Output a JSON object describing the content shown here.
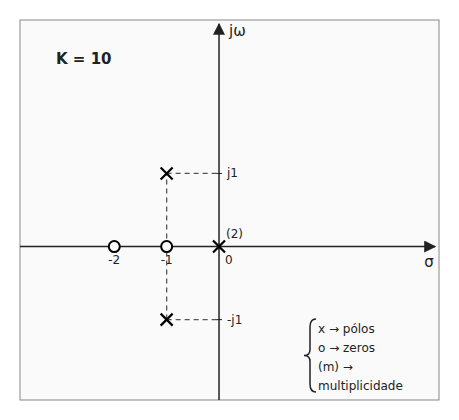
{
  "chart_data": {
    "type": "pole-zero",
    "title": "K = 10",
    "x_label": "σ",
    "y_label": "jω",
    "xlim": [
      -3.8,
      4.2
    ],
    "ylim": [
      -2.1,
      3.1
    ],
    "xticks": [
      -2,
      -1,
      0
    ],
    "yticks": [
      {
        "value": 1,
        "label": "j1"
      },
      {
        "value": -1,
        "label": "-j1"
      }
    ],
    "series": [
      {
        "name": "x  →  pólos",
        "marker": "x",
        "color": "#000000",
        "x": [
          0,
          -1,
          -1
        ],
        "values": [
          0,
          1,
          -1
        ]
      },
      {
        "name": "o  →  zeros",
        "marker": "o",
        "color": "#000000",
        "x": [
          -1,
          -2
        ],
        "values": [
          0,
          0
        ]
      }
    ],
    "guides": [
      {
        "x": [
          -1,
          0
        ],
        "values": [
          1,
          1
        ]
      },
      {
        "x": [
          -1,
          0
        ],
        "values": [
          -1,
          -1
        ]
      },
      {
        "x": [
          -1,
          -1
        ],
        "values": [
          -1,
          1
        ]
      }
    ],
    "annotations": [
      {
        "text": "(2)",
        "x": 0,
        "y": 0
      }
    ],
    "legend_note": [
      "(m)  →",
      "multiplicidade"
    ],
    "legend": "lower right"
  }
}
